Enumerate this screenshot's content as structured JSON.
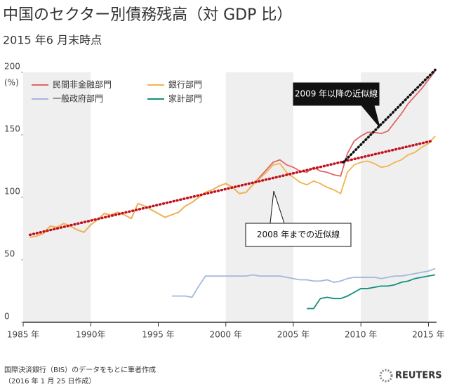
{
  "chart_data": {
    "type": "line",
    "title": "中国のセクター別債務残高（対 GDP 比）",
    "subtitle": "2015 年6 月末時点",
    "y_axis_label": "(%)",
    "x": [
      1985.5,
      1986,
      1986.5,
      1987,
      1987.5,
      1988,
      1988.5,
      1989,
      1989.5,
      1990,
      1990.5,
      1991,
      1991.5,
      1992,
      1992.5,
      1993,
      1993.5,
      1994,
      1994.5,
      1995,
      1995.5,
      1996,
      1996.5,
      1997,
      1997.5,
      1998,
      1998.5,
      1999,
      1999.5,
      2000,
      2000.5,
      2001,
      2001.5,
      2002,
      2002.5,
      2003,
      2003.5,
      2004,
      2004.5,
      2005,
      2005.5,
      2006,
      2006.5,
      2007,
      2007.5,
      2008,
      2008.5,
      2009,
      2009.5,
      2010,
      2010.5,
      2011,
      2011.5,
      2012,
      2012.5,
      2013,
      2013.5,
      2014,
      2014.5,
      2015,
      2015.5
    ],
    "series": [
      {
        "name": "民間非金融部門",
        "color": "#e06666",
        "values": [
          68,
          69,
          71,
          77,
          76,
          79,
          77,
          74,
          72,
          78,
          82,
          87,
          86,
          88,
          86,
          83,
          95,
          93,
          90,
          87,
          84,
          86,
          88,
          93,
          96,
          100,
          104,
          106,
          109,
          111,
          108,
          103,
          104,
          110,
          116,
          122,
          128,
          130,
          126,
          124,
          121,
          120,
          124,
          121,
          120,
          118,
          117,
          135,
          145,
          149,
          152,
          152,
          151,
          153,
          160,
          167,
          175,
          181,
          187,
          194,
          201
        ]
      },
      {
        "name": "銀行部門",
        "color": "#f3b34f",
        "values": [
          68,
          69,
          71,
          77,
          76,
          79,
          77,
          74,
          72,
          78,
          82,
          87,
          86,
          88,
          86,
          83,
          95,
          93,
          90,
          87,
          84,
          86,
          88,
          93,
          96,
          100,
          104,
          106,
          109,
          111,
          108,
          103,
          104,
          110,
          115,
          120,
          126,
          127,
          120,
          116,
          112,
          110,
          113,
          111,
          108,
          106,
          103,
          120,
          126,
          128,
          129,
          127,
          124,
          125,
          128,
          130,
          134,
          136,
          140,
          143,
          149
        ]
      },
      {
        "name": "一般政府部門",
        "color": "#a4b8dc",
        "values": [
          null,
          null,
          null,
          null,
          null,
          null,
          null,
          null,
          null,
          null,
          null,
          null,
          null,
          null,
          null,
          null,
          null,
          null,
          null,
          null,
          null,
          21,
          21,
          21,
          20,
          29,
          37,
          37,
          37,
          37,
          37,
          37,
          37,
          38,
          37,
          37,
          37,
          37,
          36,
          35,
          34,
          34,
          33,
          33,
          34,
          32,
          33,
          35,
          36,
          36,
          36,
          36,
          35,
          36,
          37,
          37,
          38,
          39,
          40,
          41,
          43
        ]
      },
      {
        "name": "家計部門",
        "color": "#13907e",
        "values": [
          null,
          null,
          null,
          null,
          null,
          null,
          null,
          null,
          null,
          null,
          null,
          null,
          null,
          null,
          null,
          null,
          null,
          null,
          null,
          null,
          null,
          null,
          null,
          null,
          null,
          null,
          null,
          null,
          null,
          null,
          null,
          null,
          null,
          null,
          null,
          null,
          null,
          null,
          null,
          null,
          null,
          11,
          11,
          19,
          20,
          19,
          19,
          21,
          24,
          27,
          27,
          28,
          29,
          29,
          30,
          32,
          33,
          35,
          36,
          37,
          38
        ]
      }
    ],
    "trend_lines": [
      {
        "label": "2008 年までの近似線",
        "color": "#c0101a",
        "x": [
          1985.5,
          2015.2
        ],
        "y": [
          70,
          145
        ]
      },
      {
        "label": "2009 年以降の近似線",
        "color": "#111111",
        "x": [
          2008.7,
          2015.5
        ],
        "y": [
          128,
          202
        ]
      }
    ],
    "shaded_bands": [
      [
        1985,
        1990
      ],
      [
        2000,
        2005
      ],
      [
        2010,
        2015
      ]
    ],
    "xlim": [
      1985,
      2015.6
    ],
    "xticks": [
      {
        "value": 1985,
        "label": "1985 年"
      },
      {
        "value": 1990,
        "label": "1990年"
      },
      {
        "value": 1995,
        "label": "1995 年"
      },
      {
        "value": 2000,
        "label": "2000 年"
      },
      {
        "value": 2005,
        "label": "2005 年"
      },
      {
        "value": 2010,
        "label": "2010 年"
      },
      {
        "value": 2015,
        "label": "2015 年"
      }
    ],
    "ylim": [
      0,
      200
    ],
    "yticks": [
      0,
      50,
      100,
      150,
      200
    ],
    "legend": "upper left",
    "source": "国際決済銀行（BIS）のデータをもとに筆者作成",
    "note": "（2016 年 1 月 25 日作成）",
    "logo": "REUTERS"
  }
}
